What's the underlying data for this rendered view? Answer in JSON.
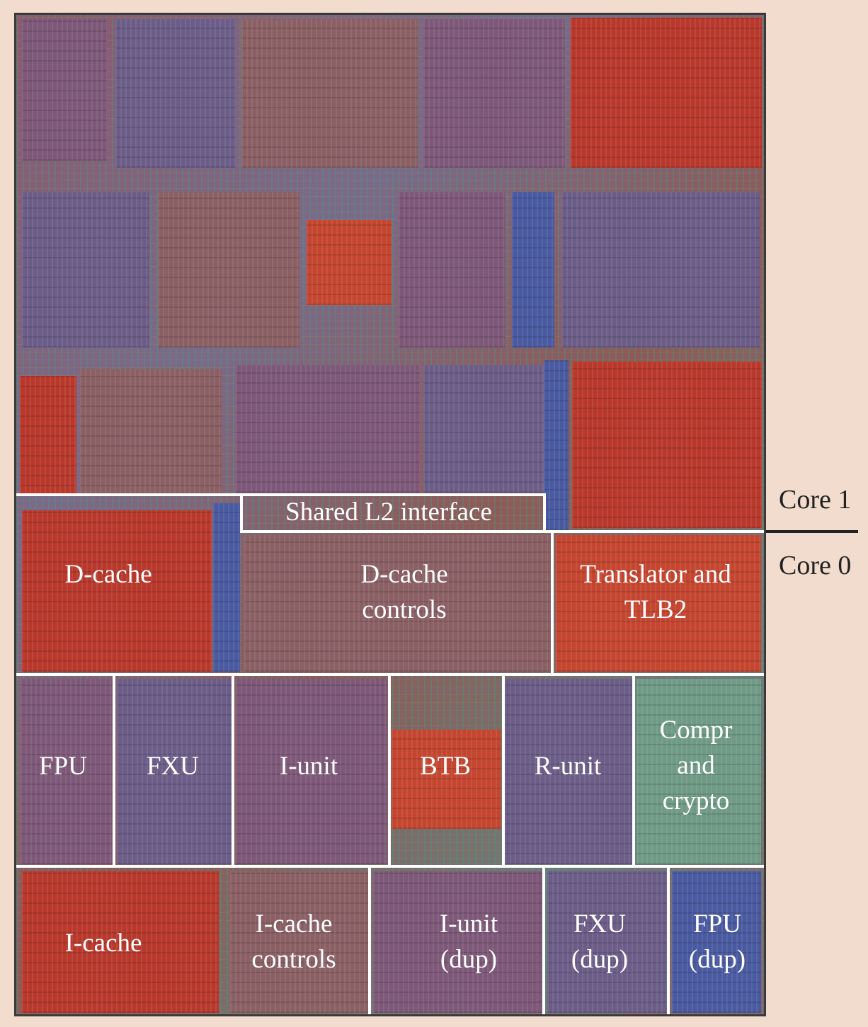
{
  "core_labels": {
    "upper": "Core 1",
    "lower": "Core 0"
  },
  "units": {
    "shared_l2": "Shared L2 interface",
    "dcache": "D-cache",
    "dcache_controls_1": "D-cache",
    "dcache_controls_2": "controls",
    "translator_1": "Translator and",
    "translator_2": "TLB2",
    "fpu": "FPU",
    "fxu": "FXU",
    "iunit": "I-unit",
    "btb": "BTB",
    "runit": "R-unit",
    "compr_1": "Compr",
    "compr_2": "and",
    "compr_3": "crypto",
    "icache": "I-cache",
    "icache_controls_1": "I-cache",
    "icache_controls_2": "controls",
    "iunit_dup_1": "I-unit",
    "iunit_dup_2": "(dup)",
    "fxu_dup_1": "FXU",
    "fxu_dup_2": "(dup)",
    "fpu_dup_1": "FPU",
    "fpu_dup_2": "(dup)"
  }
}
